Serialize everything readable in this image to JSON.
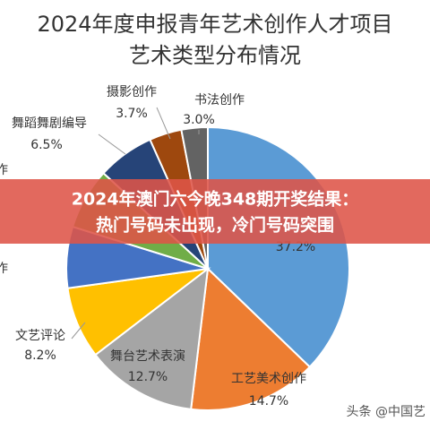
{
  "chart_data": {
    "type": "pie",
    "title_lines": [
      "2024年度申报青年艺术创作人才项目",
      "艺术类型分布情况"
    ],
    "categories": [
      null,
      "工艺美术创作",
      "舞台艺术表演",
      "文艺评论",
      "作",
      "作",
      "舞蹈舞剧编导",
      "摄影创作",
      "书法创作"
    ],
    "values": [
      37.2,
      14.7,
      12.7,
      8.2,
      7.0,
      7.0,
      6.5,
      3.7,
      3.0
    ],
    "value_labels": [
      "37.2%",
      "14.7%",
      "12.7%",
      "8.2%",
      null,
      null,
      "6.5%",
      "3.7%",
      "3.0%"
    ],
    "colors": [
      "#5b9bd5",
      "#ed7d31",
      "#a5a5a5",
      "#ffc000",
      "#4472c4",
      "#70ad47",
      "#264478",
      "#9e480e",
      "#636363"
    ]
  },
  "banner": {
    "lines": [
      "2024年澳门六今晚348期开奖结果：",
      "热门号码未出现，冷门号码突围"
    ]
  },
  "watermark": "头条 @中国艺"
}
